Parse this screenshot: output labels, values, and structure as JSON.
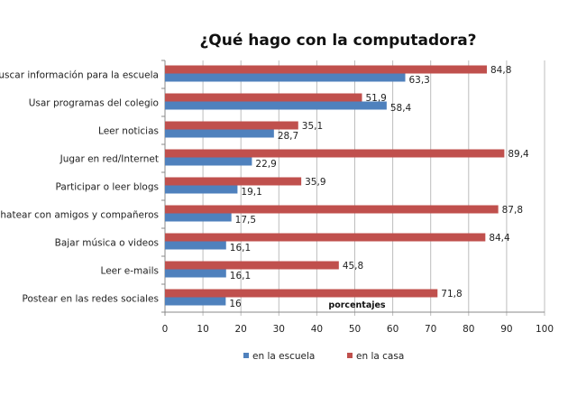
{
  "chart_data": {
    "type": "bar",
    "orientation": "horizontal",
    "title": "¿Qué hago con la computadora?",
    "xlabel": "porcentajes",
    "ylabel": "",
    "xlim": [
      0,
      100
    ],
    "xticks": [
      0,
      10,
      20,
      30,
      40,
      50,
      60,
      70,
      80,
      90,
      100
    ],
    "grid": true,
    "legend_position": "bottom",
    "categories": [
      "Buscar información para la escuela",
      "Usar programas del colegio",
      "Leer noticias",
      "Jugar en red/Internet",
      "Participar o leer blogs",
      "Chatear con amigos y compañeros",
      "Bajar música o videos",
      "Leer e-mails",
      "Postear en las redes sociales"
    ],
    "series": [
      {
        "name": "en la escuela",
        "color": "#4f81bd",
        "values": [
          63.3,
          58.4,
          28.7,
          22.9,
          19.1,
          17.5,
          16.1,
          16.1,
          16
        ],
        "labels": [
          "63,3",
          "58,4",
          "28,7",
          "22,9",
          "19,1",
          "17,5",
          "16,1",
          "16,1",
          "16"
        ]
      },
      {
        "name": "en la casa",
        "color": "#c0504d",
        "values": [
          84.8,
          51.9,
          35.1,
          89.4,
          35.9,
          87.8,
          84.4,
          45.8,
          71.8
        ],
        "labels": [
          "84,8",
          "51,9",
          "35,1",
          "89,4",
          "35,9",
          "87,8",
          "84,4",
          "45,8",
          "71,8"
        ]
      }
    ]
  }
}
